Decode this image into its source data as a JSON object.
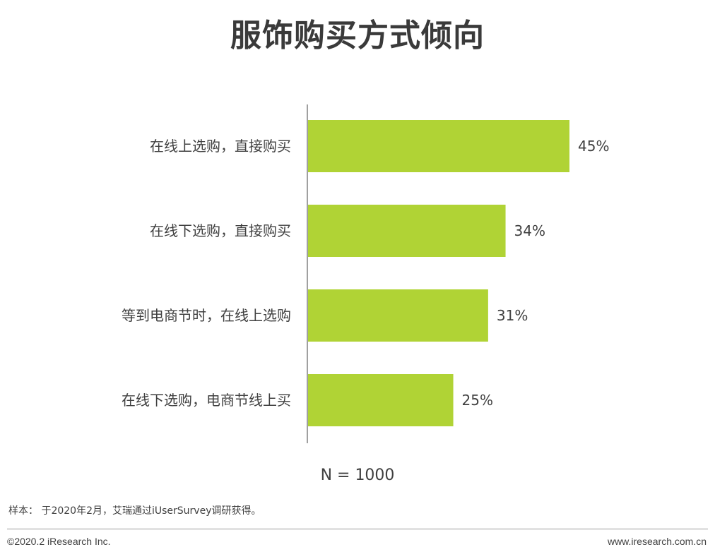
{
  "chart_data": {
    "type": "bar",
    "orientation": "horizontal",
    "title": "服饰购买方式倾向",
    "categories": [
      "在线上选购，直接购买",
      "在线下选购，直接购买",
      "等到电商节时，在线上选购",
      "在线下选购，电商节线上买"
    ],
    "values": [
      45,
      34,
      31,
      25
    ],
    "value_labels": [
      "45%",
      "34%",
      "31%",
      "25%"
    ],
    "unit": "%",
    "xlim": [
      0,
      50
    ],
    "grid": false,
    "bar_color": "#b0d335"
  },
  "note": "N = 1000",
  "footer": {
    "sample": "样本： 于2020年2月，艾瑞通过iUserSurvey调研获得。",
    "copyright": "©2020.2 iResearch Inc.",
    "website": "www.iresearch.com.cn"
  }
}
